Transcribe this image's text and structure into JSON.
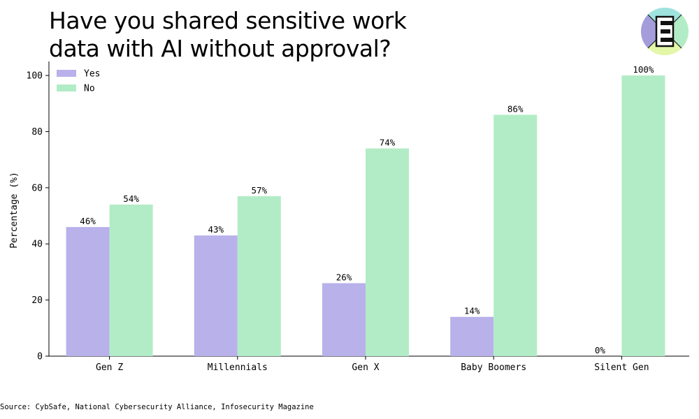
{
  "title_lines": [
    "Have you shared sensitive work",
    "data with AI without approval?"
  ],
  "source": "Source: CybSafe, National Cybersecurity Alliance, Infosecurity Magazine",
  "logo": {
    "icon": "e-logo-icon"
  },
  "chart_data": {
    "type": "bar",
    "title": "Have you shared sensitive work data with AI without approval?",
    "xlabel": "",
    "ylabel": "Percentage (%)",
    "ylim": [
      0,
      105
    ],
    "yticks": [
      0,
      20,
      40,
      60,
      80,
      100
    ],
    "categories": [
      "Gen Z",
      "Millennials",
      "Gen X",
      "Baby Boomers",
      "Silent Gen"
    ],
    "series": [
      {
        "name": "Yes",
        "values": [
          46,
          43,
          26,
          14,
          0
        ],
        "labels": [
          "46%",
          "43%",
          "26%",
          "14%",
          "0%"
        ],
        "color": "#b8b1ea"
      },
      {
        "name": "No",
        "values": [
          54,
          57,
          74,
          86,
          100
        ],
        "labels": [
          "54%",
          "57%",
          "74%",
          "86%",
          "100%"
        ],
        "color": "#b2ecc6"
      }
    ],
    "legend": "top-left",
    "grid": false
  }
}
